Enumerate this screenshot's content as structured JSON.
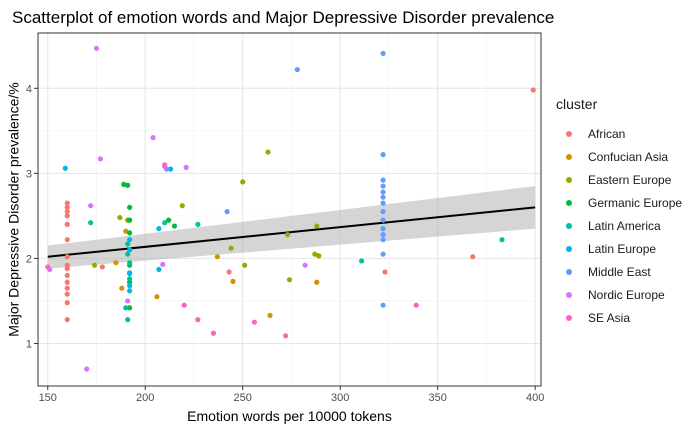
{
  "chart_data": {
    "type": "scatter",
    "title": "Scatterplot of emotion words and Major Depressive Disorder prevalence",
    "xlabel": "Emotion words per 10000 tokens",
    "ylabel": "Major Depressive Disorder prevalence/%",
    "xlim": [
      145,
      403
    ],
    "ylim": [
      0.5,
      4.65
    ],
    "x_ticks": [
      150,
      200,
      250,
      300,
      350,
      400
    ],
    "y_ticks": [
      1,
      2,
      3,
      4
    ],
    "grid": true,
    "legend_title": "cluster",
    "legend_position": "right",
    "trend_line": {
      "method": "linear",
      "x": [
        150,
        400
      ],
      "y": [
        2.02,
        2.6
      ],
      "ci_lower": [
        1.88,
        2.35
      ],
      "ci_upper": [
        2.15,
        2.85
      ],
      "line_color": "#000000",
      "band_color": "#b3b3b3"
    },
    "series": [
      {
        "name": "African",
        "color": "#F8766D",
        "points": [
          [
            160,
            2.65
          ],
          [
            160,
            2.6
          ],
          [
            160,
            2.55
          ],
          [
            160,
            2.5
          ],
          [
            160,
            2.4
          ],
          [
            160,
            2.22
          ],
          [
            160,
            2.02
          ],
          [
            160,
            1.92
          ],
          [
            160,
            1.88
          ],
          [
            160,
            1.8
          ],
          [
            160,
            1.72
          ],
          [
            160,
            1.65
          ],
          [
            160,
            1.58
          ],
          [
            160,
            1.48
          ],
          [
            160,
            1.28
          ],
          [
            178,
            1.9
          ],
          [
            243,
            1.84
          ],
          [
            323,
            1.84
          ],
          [
            368,
            2.02
          ],
          [
            399,
            3.98
          ]
        ]
      },
      {
        "name": "Confucian Asia",
        "color": "#D39200",
        "points": [
          [
            185,
            1.95
          ],
          [
            188,
            1.65
          ],
          [
            190,
            2.32
          ],
          [
            206,
            1.55
          ],
          [
            237,
            2.02
          ],
          [
            245,
            1.73
          ],
          [
            264,
            1.33
          ],
          [
            288,
            1.72
          ]
        ]
      },
      {
        "name": "Eastern Europe",
        "color": "#93AA00",
        "points": [
          [
            174,
            1.92
          ],
          [
            187,
            2.48
          ],
          [
            191,
            2.45
          ],
          [
            219,
            2.62
          ],
          [
            244,
            2.12
          ],
          [
            250,
            2.9
          ],
          [
            251,
            1.92
          ],
          [
            263,
            3.25
          ],
          [
            273,
            2.28
          ],
          [
            274,
            1.75
          ],
          [
            287,
            2.05
          ],
          [
            288,
            2.38
          ],
          [
            289,
            2.03
          ]
        ]
      },
      {
        "name": "Germanic Europe",
        "color": "#00BA38",
        "points": [
          [
            189,
            2.87
          ],
          [
            191,
            2.86
          ],
          [
            192,
            2.6
          ],
          [
            192,
            2.45
          ],
          [
            192,
            2.3
          ],
          [
            192,
            2.1
          ],
          [
            192,
            1.92
          ],
          [
            192,
            1.72
          ],
          [
            192,
            1.42
          ],
          [
            212,
            2.45
          ],
          [
            215,
            2.38
          ]
        ]
      },
      {
        "name": "Latin America",
        "color": "#00C19F",
        "points": [
          [
            172,
            2.42
          ],
          [
            190,
            1.42
          ],
          [
            191,
            1.28
          ],
          [
            191,
            2.17
          ],
          [
            191,
            2.05
          ],
          [
            192,
            1.95
          ],
          [
            192,
            1.83
          ],
          [
            192,
            1.76
          ],
          [
            210,
            2.42
          ],
          [
            227,
            2.4
          ],
          [
            311,
            1.97
          ],
          [
            383,
            2.22
          ]
        ]
      },
      {
        "name": "Latin Europe",
        "color": "#00B9E3",
        "points": [
          [
            159,
            3.06
          ],
          [
            192,
            1.62
          ],
          [
            192,
            1.68
          ],
          [
            192,
            1.82
          ],
          [
            192,
            2.1
          ],
          [
            192,
            2.22
          ],
          [
            207,
            1.87
          ],
          [
            207,
            2.35
          ],
          [
            213,
            3.05
          ]
        ]
      },
      {
        "name": "Middle East",
        "color": "#619CFF",
        "points": [
          [
            211,
            3.05
          ],
          [
            242,
            2.55
          ],
          [
            278,
            4.22
          ],
          [
            322,
            4.41
          ],
          [
            322,
            3.22
          ],
          [
            322,
            2.92
          ],
          [
            322,
            2.85
          ],
          [
            322,
            2.78
          ],
          [
            322,
            2.72
          ],
          [
            322,
            2.65
          ],
          [
            322,
            2.55
          ],
          [
            322,
            2.45
          ],
          [
            322,
            2.35
          ],
          [
            322,
            2.28
          ],
          [
            322,
            2.22
          ],
          [
            322,
            2.05
          ],
          [
            322,
            1.45
          ]
        ]
      },
      {
        "name": "Nordic Europe",
        "color": "#DB72FB",
        "points": [
          [
            151,
            1.87
          ],
          [
            170,
            0.7
          ],
          [
            172,
            2.62
          ],
          [
            175,
            4.47
          ],
          [
            177,
            3.17
          ],
          [
            191,
            1.5
          ],
          [
            204,
            3.42
          ],
          [
            209,
            1.93
          ],
          [
            210,
            3.08
          ],
          [
            221,
            3.07
          ],
          [
            282,
            1.92
          ]
        ]
      },
      {
        "name": "SE Asia",
        "color": "#FF61C3",
        "points": [
          [
            150,
            1.9
          ],
          [
            210,
            3.1
          ],
          [
            220,
            1.45
          ],
          [
            227,
            1.28
          ],
          [
            235,
            1.12
          ],
          [
            256,
            1.25
          ],
          [
            272,
            1.09
          ],
          [
            339,
            1.45
          ]
        ]
      }
    ]
  }
}
